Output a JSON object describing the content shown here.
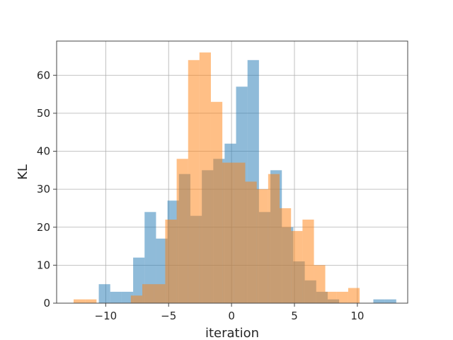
{
  "chart_data": {
    "type": "bar",
    "title": "",
    "xlabel": "iteration",
    "ylabel": "KL",
    "xlim": [
      -13.9,
      14.0
    ],
    "ylim": [
      0,
      69
    ],
    "grid": true,
    "legend": "none",
    "x_ticks": [
      -10,
      -5,
      0,
      5,
      10
    ],
    "x_tick_labels": [
      "−10",
      "−5",
      "0",
      "5",
      "10"
    ],
    "y_ticks": [
      0,
      10,
      20,
      30,
      40,
      50,
      60
    ],
    "y_tick_labels": [
      "0",
      "10",
      "20",
      "30",
      "40",
      "50",
      "60"
    ],
    "series": [
      {
        "color": "#1f77b4",
        "opacity": 0.5,
        "bins": [
          {
            "x0": -10.55,
            "x1": -9.64,
            "value": 5
          },
          {
            "x0": -9.64,
            "x1": -8.73,
            "value": 3
          },
          {
            "x0": -8.73,
            "x1": -7.82,
            "value": 3
          },
          {
            "x0": -7.82,
            "x1": -6.91,
            "value": 12
          },
          {
            "x0": -6.91,
            "x1": -6.0,
            "value": 24
          },
          {
            "x0": -6.0,
            "x1": -5.09,
            "value": 17
          },
          {
            "x0": -5.09,
            "x1": -4.18,
            "value": 27
          },
          {
            "x0": -4.18,
            "x1": -3.27,
            "value": 34
          },
          {
            "x0": -3.27,
            "x1": -2.36,
            "value": 23
          },
          {
            "x0": -2.36,
            "x1": -1.45,
            "value": 35
          },
          {
            "x0": -1.45,
            "x1": -0.55,
            "value": 38
          },
          {
            "x0": -0.55,
            "x1": 0.36,
            "value": 42
          },
          {
            "x0": 0.36,
            "x1": 1.27,
            "value": 57
          },
          {
            "x0": 1.27,
            "x1": 2.18,
            "value": 64
          },
          {
            "x0": 2.18,
            "x1": 3.09,
            "value": 24
          },
          {
            "x0": 3.09,
            "x1": 4.0,
            "value": 35
          },
          {
            "x0": 4.0,
            "x1": 4.91,
            "value": 20
          },
          {
            "x0": 4.91,
            "x1": 5.82,
            "value": 11
          },
          {
            "x0": 5.82,
            "x1": 6.73,
            "value": 6
          },
          {
            "x0": 6.73,
            "x1": 7.64,
            "value": 3
          },
          {
            "x0": 7.64,
            "x1": 8.55,
            "value": 1
          },
          {
            "x0": 8.55,
            "x1": 9.45,
            "value": 0
          },
          {
            "x0": 9.45,
            "x1": 10.36,
            "value": 0
          },
          {
            "x0": 10.36,
            "x1": 11.27,
            "value": 0
          },
          {
            "x0": 11.27,
            "x1": 12.18,
            "value": 1
          },
          {
            "x0": 12.18,
            "x1": 13.09,
            "value": 1
          }
        ]
      },
      {
        "color": "#ff7f0e",
        "opacity": 0.5,
        "bins": [
          {
            "x0": -12.55,
            "x1": -11.64,
            "value": 1
          },
          {
            "x0": -11.64,
            "x1": -10.73,
            "value": 1
          },
          {
            "x0": -10.73,
            "x1": -9.82,
            "value": 0
          },
          {
            "x0": -9.82,
            "x1": -8.91,
            "value": 0
          },
          {
            "x0": -8.91,
            "x1": -8.0,
            "value": 0
          },
          {
            "x0": -8.0,
            "x1": -7.09,
            "value": 2
          },
          {
            "x0": -7.09,
            "x1": -6.18,
            "value": 5
          },
          {
            "x0": -6.18,
            "x1": -5.27,
            "value": 5
          },
          {
            "x0": -5.27,
            "x1": -4.36,
            "value": 22
          },
          {
            "x0": -4.36,
            "x1": -3.45,
            "value": 38
          },
          {
            "x0": -3.45,
            "x1": -2.55,
            "value": 64
          },
          {
            "x0": -2.55,
            "x1": -1.64,
            "value": 66
          },
          {
            "x0": -1.64,
            "x1": -0.73,
            "value": 53
          },
          {
            "x0": -0.73,
            "x1": 0.18,
            "value": 37
          },
          {
            "x0": 0.18,
            "x1": 1.09,
            "value": 37
          },
          {
            "x0": 1.09,
            "x1": 2.0,
            "value": 32
          },
          {
            "x0": 2.0,
            "x1": 2.91,
            "value": 30
          },
          {
            "x0": 2.91,
            "x1": 3.82,
            "value": 34
          },
          {
            "x0": 3.82,
            "x1": 4.73,
            "value": 25
          },
          {
            "x0": 4.73,
            "x1": 5.64,
            "value": 19
          },
          {
            "x0": 5.64,
            "x1": 6.55,
            "value": 22
          },
          {
            "x0": 6.55,
            "x1": 7.45,
            "value": 10
          },
          {
            "x0": 7.45,
            "x1": 8.36,
            "value": 3
          },
          {
            "x0": 8.36,
            "x1": 9.27,
            "value": 3
          },
          {
            "x0": 9.27,
            "x1": 10.18,
            "value": 4
          },
          {
            "x0": 10.18,
            "x1": 11.09,
            "value": 0
          }
        ]
      }
    ]
  }
}
